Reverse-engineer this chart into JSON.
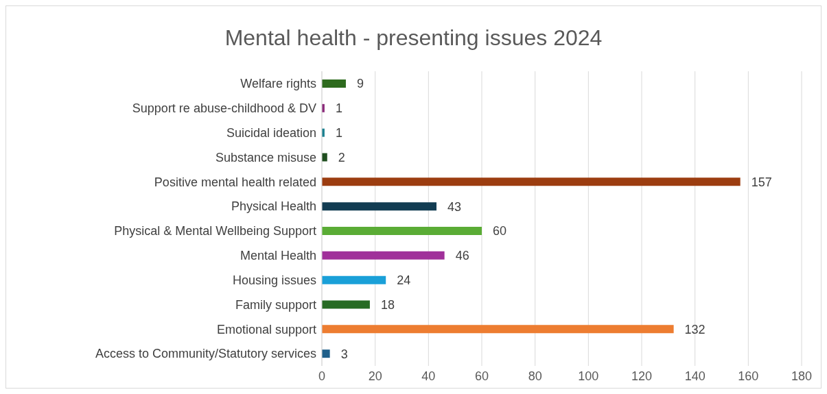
{
  "chart_data": {
    "type": "bar",
    "orientation": "horizontal",
    "title": "Mental health - presenting issues 2024",
    "categories": [
      "Welfare rights",
      "Support re abuse-childhood & DV",
      "Suicidal ideation",
      "Substance misuse",
      "Positive mental health related",
      "Physical Health",
      "Physical & Mental Wellbeing Support",
      "Mental Health",
      "Housing issues",
      "Family support",
      "Emotional support",
      "Access to Community/Statutory services"
    ],
    "values": [
      9,
      1,
      1,
      2,
      157,
      43,
      60,
      46,
      24,
      18,
      132,
      3
    ],
    "colors": [
      "#2e6b1e",
      "#8b2a7a",
      "#1a7f8f",
      "#1f4e1f",
      "#9c3d10",
      "#123c52",
      "#5aac35",
      "#a0309a",
      "#1aa0d8",
      "#276b24",
      "#ed7d31",
      "#1f5f8a"
    ],
    "xlim": [
      0,
      180
    ],
    "xticks": [
      0,
      20,
      40,
      60,
      80,
      100,
      120,
      140,
      160,
      180
    ],
    "grid": "x",
    "data_labels": true
  }
}
